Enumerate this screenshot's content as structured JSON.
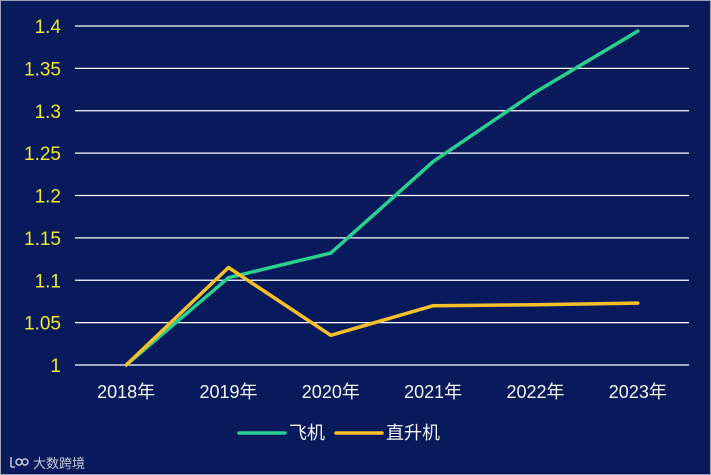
{
  "chart_data": {
    "type": "line",
    "categories": [
      "2018年",
      "2019年",
      "2020年",
      "2021年",
      "2022年",
      "2023年"
    ],
    "series": [
      {
        "name": "飞机",
        "color": "#2ccf8e",
        "values": [
          1.0,
          1.103,
          1.132,
          1.24,
          1.322,
          1.394
        ]
      },
      {
        "name": "直升机",
        "color": "#f5c02a",
        "values": [
          1.0,
          1.115,
          1.035,
          1.07,
          1.071,
          1.073
        ]
      }
    ],
    "yticks": [
      "1",
      "1.05",
      "1.1",
      "1.15",
      "1.2",
      "1.25",
      "1.3",
      "1.35",
      "1.4"
    ],
    "ylim": [
      1.0,
      1.4
    ],
    "grid": true,
    "legend_position": "bottom-center",
    "colors": {
      "background": "#081a5c",
      "grid": "#ffffff",
      "ytick": "#f0e82a",
      "xtick": "#f4f4f4"
    }
  },
  "watermark": {
    "text": "大数跨境",
    "icon": "logo-icon"
  }
}
